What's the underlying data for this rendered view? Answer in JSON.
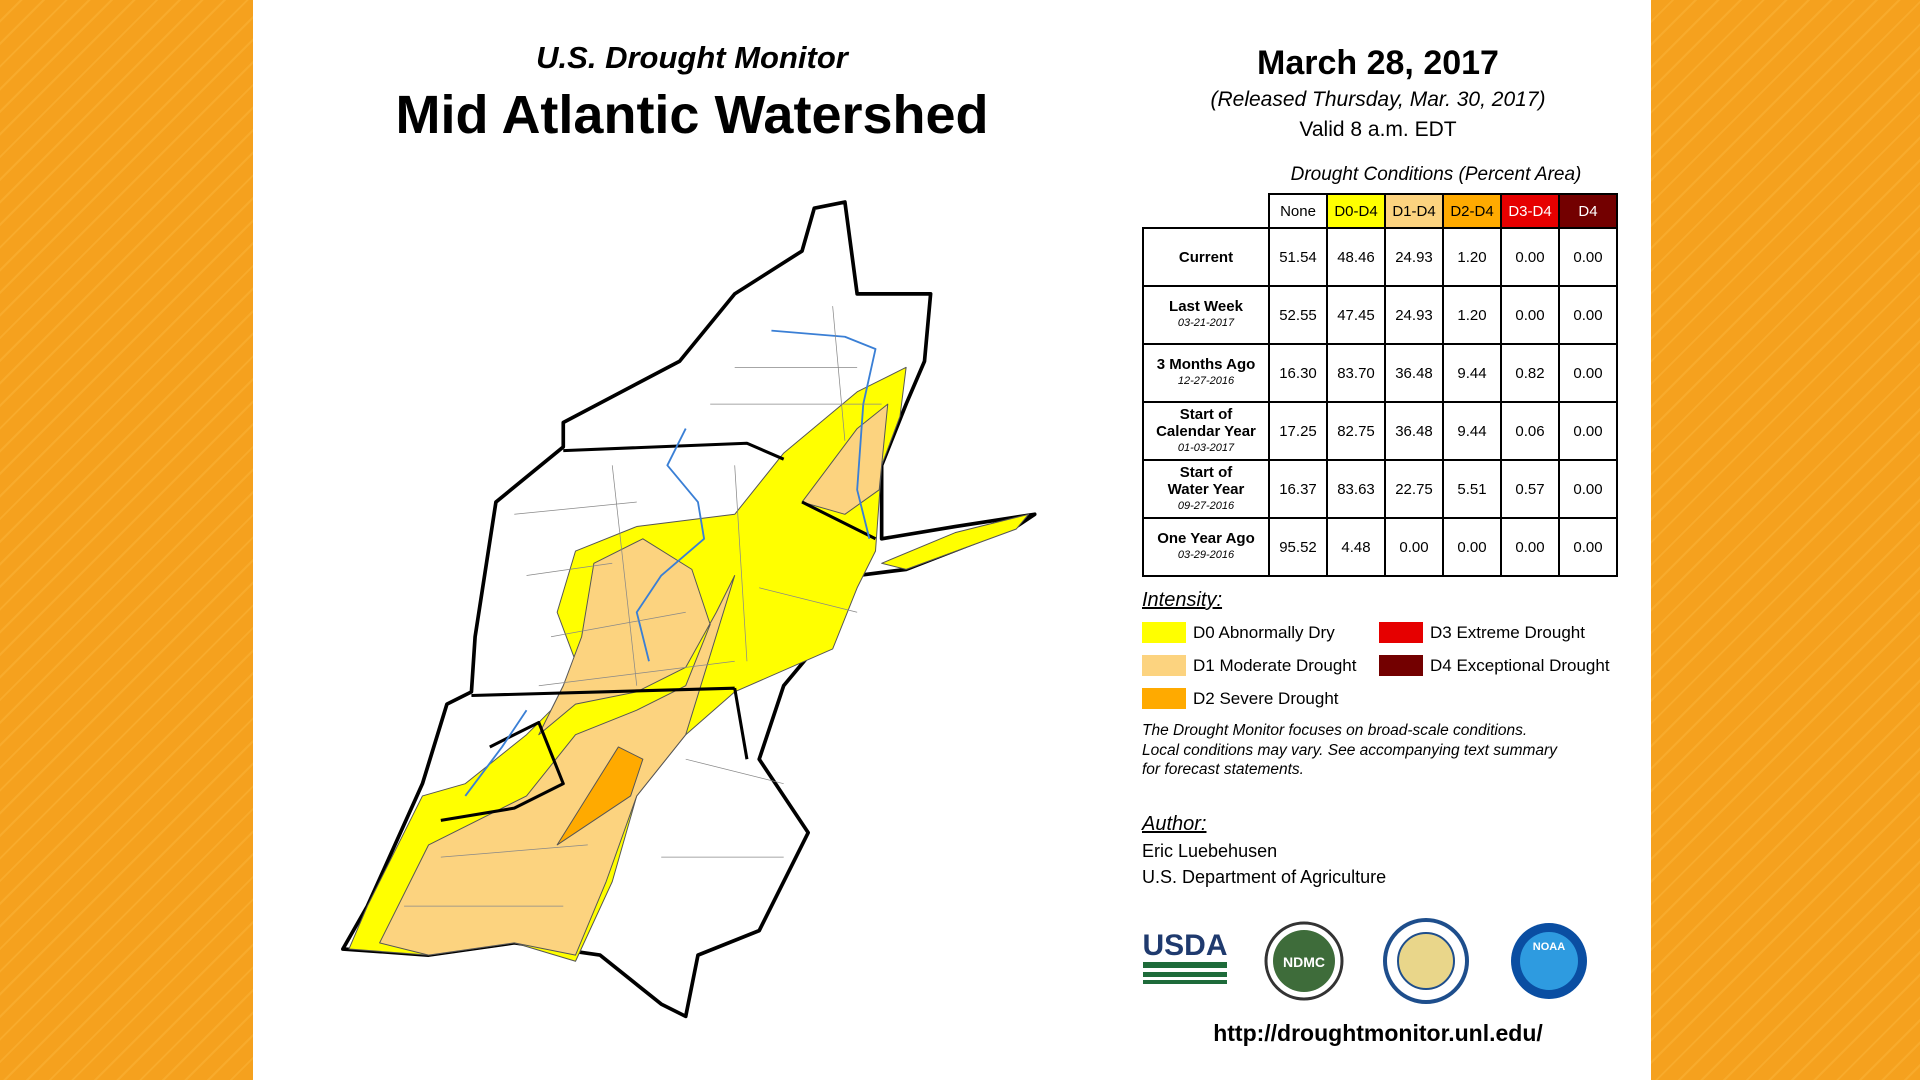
{
  "header": {
    "title": "U.S. Drought Monitor",
    "subtitle": "Mid Atlantic Watershed",
    "date": "March 28, 2017",
    "released": "(Released Thursday, Mar. 30, 2017)",
    "valid": "Valid 8 a.m. EDT"
  },
  "table": {
    "caption": "Drought Conditions (Percent Area)",
    "columns": [
      {
        "label": "None",
        "color": "#ffffff",
        "text_color": "#000000"
      },
      {
        "label": "D0-D4",
        "color": "#ffff00",
        "text_color": "#000000"
      },
      {
        "label": "D1-D4",
        "color": "#fcd37f",
        "text_color": "#000000"
      },
      {
        "label": "D2-D4",
        "color": "#ffaa00",
        "text_color": "#000000"
      },
      {
        "label": "D3-D4",
        "color": "#e60000",
        "text_color": "#ffffff"
      },
      {
        "label": "D4",
        "color": "#730000",
        "text_color": "#ffffff"
      }
    ],
    "rows": [
      {
        "label": [
          "Current"
        ],
        "values": [
          "51.54",
          "48.46",
          "24.93",
          "1.20",
          "0.00",
          "0.00"
        ]
      },
      {
        "label": [
          "Last Week"
        ],
        "date": "03-21-2017",
        "values": [
          "52.55",
          "47.45",
          "24.93",
          "1.20",
          "0.00",
          "0.00"
        ]
      },
      {
        "label": [
          "3 Months Ago"
        ],
        "date": "12-27-2016",
        "values": [
          "16.30",
          "83.70",
          "36.48",
          "9.44",
          "0.82",
          "0.00"
        ]
      },
      {
        "label": [
          "Start of",
          "Calendar Year"
        ],
        "date": "01-03-2017",
        "values": [
          "17.25",
          "82.75",
          "36.48",
          "9.44",
          "0.06",
          "0.00"
        ]
      },
      {
        "label": [
          "Start of",
          "Water Year"
        ],
        "date": "09-27-2016",
        "values": [
          "16.37",
          "83.63",
          "22.75",
          "5.51",
          "0.57",
          "0.00"
        ]
      },
      {
        "label": [
          "One Year Ago"
        ],
        "date": "03-29-2016",
        "values": [
          "95.52",
          "4.48",
          "0.00",
          "0.00",
          "0.00",
          "0.00"
        ]
      }
    ]
  },
  "legend": {
    "title": "Intensity:",
    "items": [
      {
        "label": "D0 Abnormally Dry",
        "color": "#ffff00"
      },
      {
        "label": "D1 Moderate Drought",
        "color": "#fcd37f"
      },
      {
        "label": "D2 Severe Drought",
        "color": "#ffaa00"
      },
      {
        "label": "D3 Extreme Drought",
        "color": "#e60000"
      },
      {
        "label": "D4 Exceptional Drought",
        "color": "#730000"
      }
    ]
  },
  "note": [
    "The Drought Monitor focuses on broad-scale conditions.",
    "Local conditions may vary. See accompanying text summary",
    "for forecast statements."
  ],
  "author": {
    "heading": "Author:",
    "name": "Eric Luebehusen",
    "org": "U.S. Department of Agriculture"
  },
  "logos": [
    "USDA",
    "NDMC",
    "NOAA"
  ],
  "url": "http://droughtmonitor.unl.edu/"
}
